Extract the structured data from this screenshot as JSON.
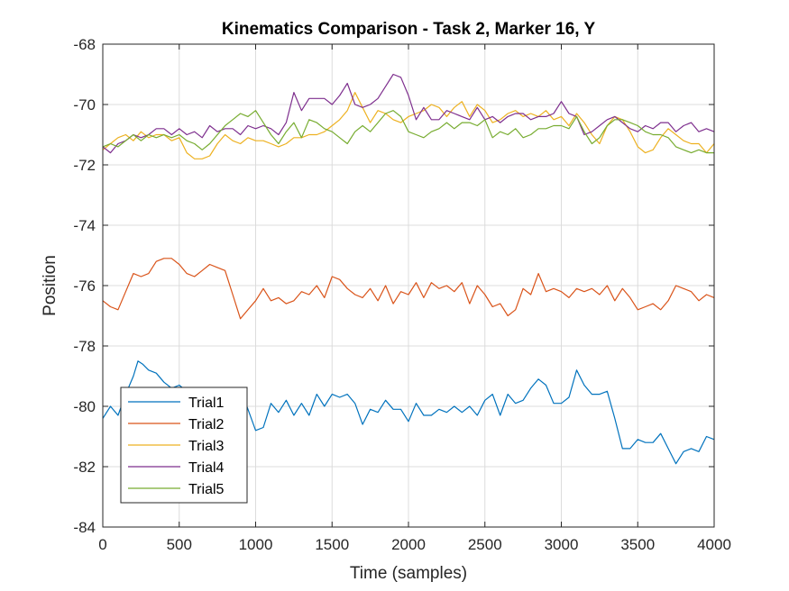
{
  "chart_data": {
    "type": "line",
    "title": "Kinematics Comparison - Task 2, Marker 16, Y",
    "xlabel": "Time (samples)",
    "ylabel": "Position",
    "xlim": [
      0,
      4000
    ],
    "ylim": [
      -84,
      -68
    ],
    "xticks": [
      0,
      500,
      1000,
      1500,
      2000,
      2500,
      3000,
      3500,
      4000
    ],
    "yticks": [
      -84,
      -82,
      -80,
      -78,
      -76,
      -74,
      -72,
      -70,
      -68
    ],
    "grid": true,
    "legend_position": "bottom-left",
    "series": [
      {
        "name": "Trial1",
        "color": "#0072BD",
        "x": [
          0,
          50,
          100,
          150,
          200,
          230,
          260,
          300,
          350,
          400,
          450,
          500,
          550,
          600,
          650,
          700,
          750,
          800,
          850,
          900,
          950,
          1000,
          1050,
          1100,
          1150,
          1200,
          1250,
          1300,
          1350,
          1400,
          1450,
          1500,
          1550,
          1600,
          1650,
          1700,
          1750,
          1800,
          1850,
          1900,
          1950,
          2000,
          2050,
          2100,
          2150,
          2200,
          2250,
          2300,
          2350,
          2400,
          2450,
          2500,
          2550,
          2600,
          2650,
          2700,
          2750,
          2800,
          2850,
          2900,
          2950,
          3000,
          3050,
          3100,
          3150,
          3200,
          3250,
          3300,
          3350,
          3400,
          3450,
          3500,
          3550,
          3600,
          3650,
          3700,
          3750,
          3800,
          3850,
          3900,
          3950,
          4000
        ],
        "values": [
          -80.4,
          -80.0,
          -80.3,
          -79.6,
          -79.0,
          -78.5,
          -78.6,
          -78.8,
          -78.9,
          -79.2,
          -79.4,
          -79.3,
          -79.5,
          -79.4,
          -79.6,
          -79.5,
          -79.4,
          -79.7,
          -79.7,
          -79.4,
          -80.1,
          -80.8,
          -80.7,
          -79.9,
          -80.2,
          -79.8,
          -80.3,
          -79.9,
          -80.3,
          -79.6,
          -80.0,
          -79.6,
          -79.7,
          -79.6,
          -79.9,
          -80.6,
          -80.1,
          -80.2,
          -79.8,
          -80.1,
          -80.1,
          -80.5,
          -79.9,
          -80.3,
          -80.3,
          -80.1,
          -80.2,
          -80.0,
          -80.2,
          -80.0,
          -80.3,
          -79.8,
          -79.6,
          -80.3,
          -79.6,
          -79.9,
          -79.8,
          -79.4,
          -79.1,
          -79.3,
          -79.9,
          -79.9,
          -79.7,
          -78.8,
          -79.3,
          -79.6,
          -79.6,
          -79.5,
          -80.4,
          -81.4,
          -81.4,
          -81.1,
          -81.2,
          -81.2,
          -80.9,
          -81.4,
          -81.9,
          -81.5,
          -81.4,
          -81.5,
          -81.0,
          -81.1
        ]
      },
      {
        "name": "Trial2",
        "color": "#D95319",
        "x": [
          0,
          50,
          100,
          150,
          200,
          250,
          300,
          350,
          400,
          450,
          500,
          550,
          600,
          650,
          700,
          750,
          800,
          850,
          900,
          950,
          1000,
          1050,
          1100,
          1150,
          1200,
          1250,
          1300,
          1350,
          1400,
          1450,
          1500,
          1550,
          1600,
          1650,
          1700,
          1750,
          1800,
          1850,
          1900,
          1950,
          2000,
          2050,
          2100,
          2150,
          2200,
          2250,
          2300,
          2350,
          2400,
          2450,
          2500,
          2550,
          2600,
          2650,
          2700,
          2750,
          2800,
          2850,
          2900,
          2950,
          3000,
          3050,
          3100,
          3150,
          3200,
          3250,
          3300,
          3350,
          3400,
          3450,
          3500,
          3550,
          3600,
          3650,
          3700,
          3750,
          3800,
          3850,
          3900,
          3950,
          4000
        ],
        "values": [
          -76.5,
          -76.7,
          -76.8,
          -76.2,
          -75.6,
          -75.7,
          -75.6,
          -75.2,
          -75.1,
          -75.1,
          -75.3,
          -75.6,
          -75.7,
          -75.5,
          -75.3,
          -75.4,
          -75.5,
          -76.3,
          -77.1,
          -76.8,
          -76.5,
          -76.1,
          -76.5,
          -76.4,
          -76.6,
          -76.5,
          -76.2,
          -76.3,
          -76.0,
          -76.4,
          -75.7,
          -75.8,
          -76.1,
          -76.3,
          -76.4,
          -76.1,
          -76.5,
          -76.0,
          -76.6,
          -76.2,
          -76.3,
          -75.9,
          -76.4,
          -75.9,
          -76.1,
          -76.0,
          -76.2,
          -75.9,
          -76.6,
          -76.0,
          -76.3,
          -76.7,
          -76.6,
          -77.0,
          -76.8,
          -76.1,
          -76.3,
          -75.6,
          -76.2,
          -76.1,
          -76.2,
          -76.4,
          -76.1,
          -76.2,
          -76.1,
          -76.3,
          -76.0,
          -76.5,
          -76.1,
          -76.4,
          -76.8,
          -76.7,
          -76.6,
          -76.8,
          -76.5,
          -76.0,
          -76.1,
          -76.2,
          -76.5,
          -76.3,
          -76.4
        ]
      },
      {
        "name": "Trial3",
        "color": "#EDB120",
        "x": [
          0,
          50,
          100,
          150,
          200,
          250,
          300,
          350,
          400,
          450,
          500,
          550,
          600,
          650,
          700,
          750,
          800,
          850,
          900,
          950,
          1000,
          1050,
          1100,
          1150,
          1200,
          1250,
          1300,
          1350,
          1400,
          1450,
          1500,
          1550,
          1600,
          1650,
          1700,
          1750,
          1800,
          1850,
          1900,
          1950,
          2000,
          2050,
          2100,
          2150,
          2200,
          2250,
          2300,
          2350,
          2400,
          2450,
          2500,
          2550,
          2600,
          2650,
          2700,
          2750,
          2800,
          2850,
          2900,
          2950,
          3000,
          3050,
          3100,
          3150,
          3200,
          3250,
          3300,
          3350,
          3400,
          3450,
          3500,
          3550,
          3600,
          3650,
          3700,
          3750,
          3800,
          3850,
          3900,
          3950,
          4000
        ],
        "values": [
          -71.5,
          -71.3,
          -71.1,
          -71.0,
          -71.2,
          -70.9,
          -71.1,
          -71.0,
          -71.0,
          -71.2,
          -71.1,
          -71.6,
          -71.8,
          -71.8,
          -71.7,
          -71.3,
          -71.0,
          -71.2,
          -71.3,
          -71.1,
          -71.2,
          -71.2,
          -71.3,
          -71.4,
          -71.3,
          -71.1,
          -71.1,
          -71.0,
          -71.0,
          -70.9,
          -70.7,
          -70.5,
          -70.2,
          -69.6,
          -70.1,
          -70.6,
          -70.2,
          -70.3,
          -70.5,
          -70.6,
          -70.4,
          -70.3,
          -70.2,
          -70.0,
          -70.1,
          -70.4,
          -70.1,
          -69.9,
          -70.4,
          -70.0,
          -70.2,
          -70.6,
          -70.5,
          -70.3,
          -70.2,
          -70.4,
          -70.3,
          -70.4,
          -70.2,
          -70.5,
          -70.4,
          -70.7,
          -70.3,
          -70.6,
          -71.0,
          -71.3,
          -70.7,
          -70.4,
          -70.5,
          -70.9,
          -71.4,
          -71.6,
          -71.5,
          -71.1,
          -70.8,
          -71.0,
          -71.2,
          -71.3,
          -71.3,
          -71.6,
          -71.3
        ]
      },
      {
        "name": "Trial4",
        "color": "#7E2F8E",
        "x": [
          0,
          50,
          100,
          150,
          200,
          250,
          300,
          350,
          400,
          450,
          500,
          550,
          600,
          650,
          700,
          750,
          800,
          850,
          900,
          950,
          1000,
          1050,
          1100,
          1150,
          1200,
          1250,
          1300,
          1350,
          1400,
          1450,
          1500,
          1550,
          1600,
          1650,
          1700,
          1750,
          1800,
          1850,
          1900,
          1950,
          2000,
          2050,
          2100,
          2150,
          2200,
          2250,
          2300,
          2350,
          2400,
          2450,
          2500,
          2550,
          2600,
          2650,
          2700,
          2750,
          2800,
          2850,
          2900,
          2950,
          3000,
          3050,
          3100,
          3150,
          3200,
          3250,
          3300,
          3350,
          3400,
          3450,
          3500,
          3550,
          3600,
          3650,
          3700,
          3750,
          3800,
          3850,
          3900,
          3950,
          4000
        ],
        "values": [
          -71.4,
          -71.6,
          -71.3,
          -71.2,
          -71.0,
          -71.1,
          -71.0,
          -70.8,
          -70.8,
          -71.0,
          -70.8,
          -71.0,
          -70.9,
          -71.1,
          -70.7,
          -70.9,
          -70.8,
          -70.8,
          -71.0,
          -70.7,
          -70.8,
          -70.7,
          -70.8,
          -71.0,
          -70.6,
          -69.6,
          -70.2,
          -69.8,
          -69.8,
          -69.8,
          -70.0,
          -69.7,
          -69.3,
          -70.0,
          -70.1,
          -70.0,
          -69.8,
          -69.4,
          -69.0,
          -69.1,
          -69.7,
          -70.5,
          -70.1,
          -70.5,
          -70.5,
          -70.2,
          -70.3,
          -70.4,
          -70.5,
          -70.1,
          -70.5,
          -70.4,
          -70.6,
          -70.4,
          -70.3,
          -70.3,
          -70.5,
          -70.4,
          -70.4,
          -70.3,
          -69.9,
          -70.3,
          -70.4,
          -71.0,
          -70.9,
          -70.7,
          -70.5,
          -70.4,
          -70.6,
          -70.8,
          -70.9,
          -70.7,
          -70.8,
          -70.6,
          -70.6,
          -70.9,
          -70.7,
          -70.6,
          -70.9,
          -70.8,
          -70.9
        ]
      },
      {
        "name": "Trial5",
        "color": "#77AC30",
        "x": [
          0,
          50,
          100,
          150,
          200,
          250,
          300,
          350,
          400,
          450,
          500,
          550,
          600,
          650,
          700,
          750,
          800,
          850,
          900,
          950,
          1000,
          1050,
          1100,
          1150,
          1200,
          1250,
          1300,
          1350,
          1400,
          1450,
          1500,
          1550,
          1600,
          1650,
          1700,
          1750,
          1800,
          1850,
          1900,
          1950,
          2000,
          2050,
          2100,
          2150,
          2200,
          2250,
          2300,
          2350,
          2400,
          2450,
          2500,
          2550,
          2600,
          2650,
          2700,
          2750,
          2800,
          2850,
          2900,
          2950,
          3000,
          3050,
          3100,
          3150,
          3200,
          3250,
          3300,
          3350,
          3400,
          3450,
          3500,
          3550,
          3600,
          3650,
          3700,
          3750,
          3800,
          3850,
          3900,
          3950,
          4000
        ],
        "values": [
          -71.4,
          -71.3,
          -71.4,
          -71.2,
          -71.0,
          -71.2,
          -71.0,
          -71.1,
          -71.0,
          -71.1,
          -71.0,
          -71.2,
          -71.3,
          -71.5,
          -71.3,
          -71.0,
          -70.7,
          -70.5,
          -70.3,
          -70.4,
          -70.2,
          -70.6,
          -71.0,
          -71.3,
          -70.9,
          -70.6,
          -71.1,
          -70.5,
          -70.6,
          -70.8,
          -70.9,
          -71.1,
          -71.3,
          -70.9,
          -70.7,
          -70.9,
          -70.6,
          -70.3,
          -70.2,
          -70.4,
          -70.9,
          -71.0,
          -71.1,
          -70.9,
          -70.8,
          -70.6,
          -70.8,
          -70.6,
          -70.6,
          -70.7,
          -70.5,
          -71.1,
          -70.9,
          -71.0,
          -70.8,
          -71.1,
          -71.0,
          -70.8,
          -70.8,
          -70.7,
          -70.7,
          -70.8,
          -70.4,
          -70.9,
          -71.3,
          -71.1,
          -70.7,
          -70.5,
          -70.5,
          -70.6,
          -70.7,
          -70.9,
          -71.0,
          -71.0,
          -71.1,
          -71.4,
          -71.5,
          -71.6,
          -71.5,
          -71.6,
          -71.6
        ]
      }
    ]
  }
}
